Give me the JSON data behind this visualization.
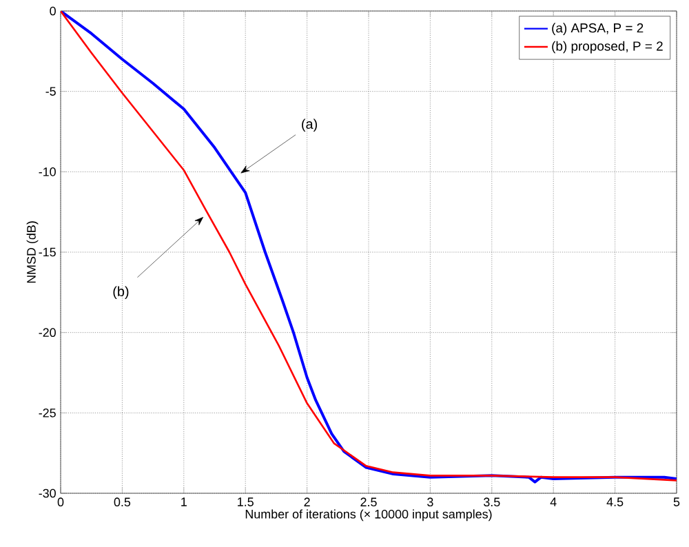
{
  "chart_data": {
    "type": "line",
    "xlabel": "Number of iterations (× 10000 input samples)",
    "ylabel": "NMSD (dB)",
    "xlim": [
      0,
      5
    ],
    "xticks": [
      0,
      0.5,
      1,
      1.5,
      2,
      2.5,
      3,
      3.5,
      4,
      4.5,
      5
    ],
    "ylim": [
      -30,
      0
    ],
    "yticks": [
      -30,
      -25,
      -20,
      -15,
      -10,
      -5,
      0
    ],
    "grid": true,
    "legend": "top right",
    "marker": "none",
    "line_style": "solid",
    "series": [
      {
        "name": "(a) APSA, P = 2",
        "color": "#0000ff",
        "x": [
          0,
          0.25,
          0.5,
          0.75,
          1,
          1.25,
          1.5,
          1.66,
          1.8,
          1.89,
          2.0,
          2.07,
          2.2,
          2.3,
          2.48,
          2.7,
          3.0,
          3.5,
          3.8,
          3.85,
          3.9,
          4.0,
          4.5,
          4.9,
          5
        ],
        "values": [
          0,
          -1.4,
          -3.0,
          -4.5,
          -6.1,
          -8.5,
          -11.3,
          -15.0,
          -18.0,
          -20.0,
          -22.8,
          -24.2,
          -26.3,
          -27.4,
          -28.4,
          -28.8,
          -29.0,
          -28.9,
          -29.0,
          -29.3,
          -29.0,
          -29.1,
          -29.0,
          -29.0,
          -29.1
        ]
      },
      {
        "name": "(b) proposed, P = 2",
        "color": "#ff0000",
        "x": [
          0,
          0.25,
          0.5,
          0.75,
          1,
          1.18,
          1.37,
          1.5,
          1.77,
          2.0,
          2.22,
          2.48,
          2.7,
          3,
          3.5,
          4,
          4.5,
          5
        ],
        "values": [
          0,
          -2.6,
          -5.1,
          -7.5,
          -9.9,
          -12.4,
          -15.0,
          -17.0,
          -20.8,
          -24.4,
          -26.9,
          -28.3,
          -28.7,
          -28.9,
          -28.9,
          -29.0,
          -29.0,
          -29.2
        ]
      }
    ],
    "annotations": [
      {
        "text": "(a)",
        "x": 1.46,
        "y": -10.1
      },
      {
        "text": "(b)",
        "x": 1.16,
        "y": -12.8
      }
    ]
  }
}
